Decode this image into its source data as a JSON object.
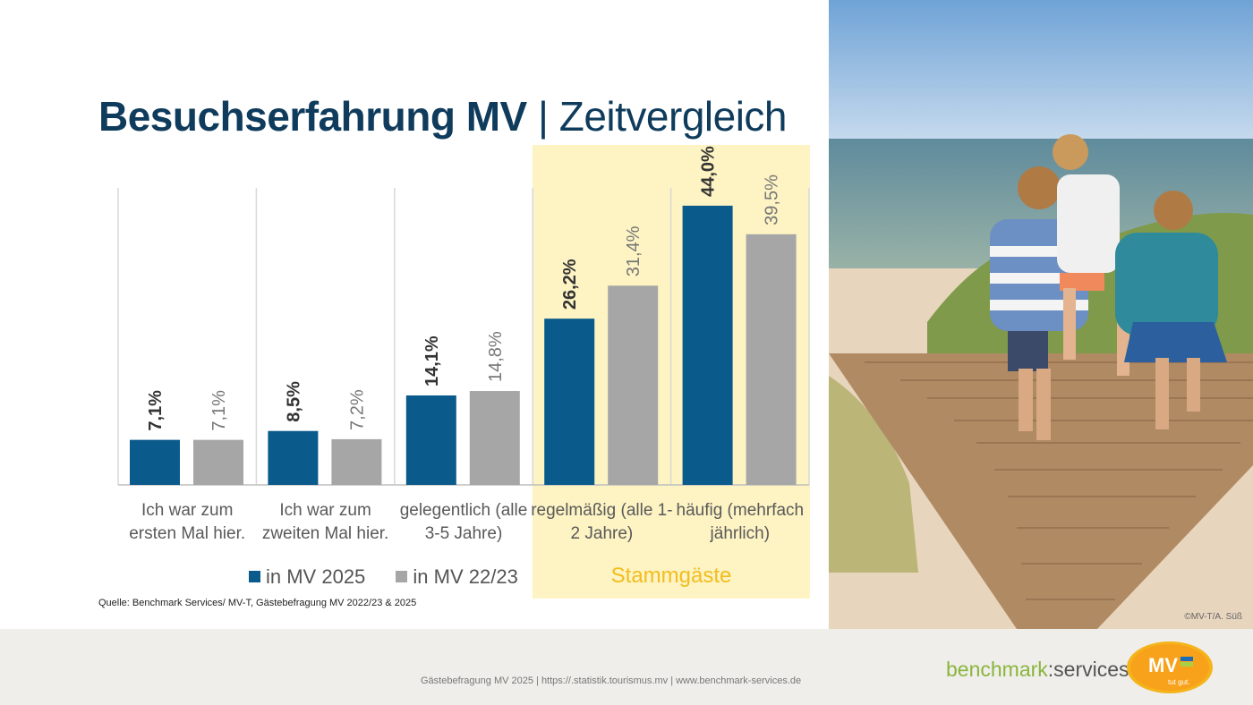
{
  "title": {
    "bold": "Besuchserfahrung MV",
    "separator": "|",
    "light": "Zeitvergleich"
  },
  "highlight_label": "Stammgäste",
  "source": "Quelle: Benchmark Services/ MV-T, Gästebefragung MV 2022/23 & 2025",
  "photo_credit": "©MV-T/A. Süß",
  "footer": {
    "text": "Gästebefragung MV 2025 | https://.statistik.tourismus.mv | www.benchmark-services.de",
    "logo_part1": "benchmark",
    "logo_part2": ":services",
    "mv_logo": "MV",
    "mv_tagline": "tut gut."
  },
  "colors": {
    "series1": "#0a5a8c",
    "series2": "#a6a6a6",
    "title": "#0f3b5c",
    "highlight": "#fdf3c3",
    "highlight_text": "#f2bd1d",
    "footer_bg": "#efeeea"
  },
  "chart_data": {
    "type": "bar",
    "categories": [
      "Ich war zum ersten Mal hier.",
      "Ich war zum zweiten Mal hier.",
      "gelegentlich (alle 3-5 Jahre)",
      "regelmäßig (alle 1-2 Jahre)",
      "häufig (mehrfach jährlich)"
    ],
    "category_lines": [
      [
        "Ich war zum",
        "ersten Mal hier."
      ],
      [
        "Ich war zum",
        "zweiten Mal hier."
      ],
      [
        "gelegentlich (alle",
        "3-5 Jahre)"
      ],
      [
        "regelmäßig (alle 1-",
        "2 Jahre)"
      ],
      [
        "häufig (mehrfach",
        "jährlich)"
      ]
    ],
    "series": [
      {
        "name": "in MV 2025",
        "values": [
          7.1,
          8.5,
          14.1,
          26.2,
          44.0
        ],
        "labels": [
          "7,1%",
          "8,5%",
          "14,1%",
          "26,2%",
          "44,0%"
        ]
      },
      {
        "name": "in MV 22/23",
        "values": [
          7.1,
          7.2,
          14.8,
          31.4,
          39.5
        ],
        "labels": [
          "7,1%",
          "7,2%",
          "14,8%",
          "31,4%",
          "39,5%"
        ]
      }
    ],
    "ylim": [
      0,
      50
    ],
    "legend": "bottom",
    "grid": false
  }
}
